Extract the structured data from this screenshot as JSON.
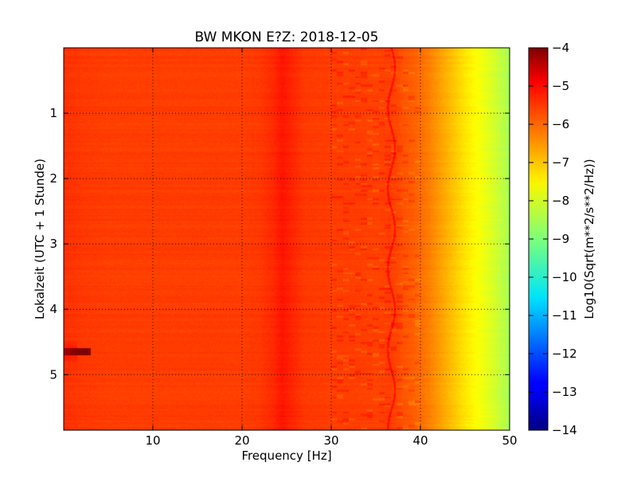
{
  "chart_data": {
    "type": "heatmap",
    "title": "BW MKON E?Z: 2018-12-05",
    "xlabel": "Frequency [Hz]",
    "ylabel": "Lokalzeit (UTC + 1 Stunde)",
    "xlim": [
      0,
      50
    ],
    "ylim": [
      5.85,
      0
    ],
    "x_ticks": [
      10,
      20,
      30,
      40,
      50
    ],
    "y_ticks": [
      1,
      2,
      3,
      4,
      5
    ],
    "grid": true,
    "colorbar": {
      "label": "Log10(Sqrt(m**2/s**2/Hz))",
      "range": [
        -14,
        -4
      ],
      "ticks": [
        -4,
        -5,
        -6,
        -7,
        -8,
        -9,
        -10,
        -11,
        -12,
        -13,
        -14
      ],
      "colormap": "jet"
    },
    "spectrum_profile": {
      "frequency_hz": [
        0,
        1,
        2,
        5,
        10,
        15,
        20,
        22,
        23.5,
        24.5,
        25.5,
        27,
        30,
        33,
        35,
        36.5,
        37.5,
        38,
        39,
        40,
        41,
        42,
        43,
        44,
        45,
        46,
        47,
        48,
        49,
        50
      ],
      "log10_amplitude": [
        -5.75,
        -5.75,
        -5.8,
        -5.85,
        -5.85,
        -5.85,
        -5.85,
        -5.8,
        -5.65,
        -5.45,
        -5.6,
        -5.8,
        -5.85,
        -5.85,
        -5.9,
        -5.85,
        -5.95,
        -6.05,
        -6.15,
        -6.3,
        -6.5,
        -6.75,
        -7.0,
        -7.25,
        -7.5,
        -7.7,
        -7.9,
        -8.1,
        -8.35,
        -8.6
      ]
    },
    "features": [
      {
        "type": "band",
        "frequency_hz": 24.5,
        "note": "persistent high-amplitude band"
      },
      {
        "type": "wandering_line",
        "frequency_hz_range": [
          36.3,
          37.2
        ]
      },
      {
        "type": "event",
        "time": 4.65,
        "frequency_hz_range": [
          0,
          3
        ],
        "log10_amplitude": -4.4
      }
    ]
  }
}
